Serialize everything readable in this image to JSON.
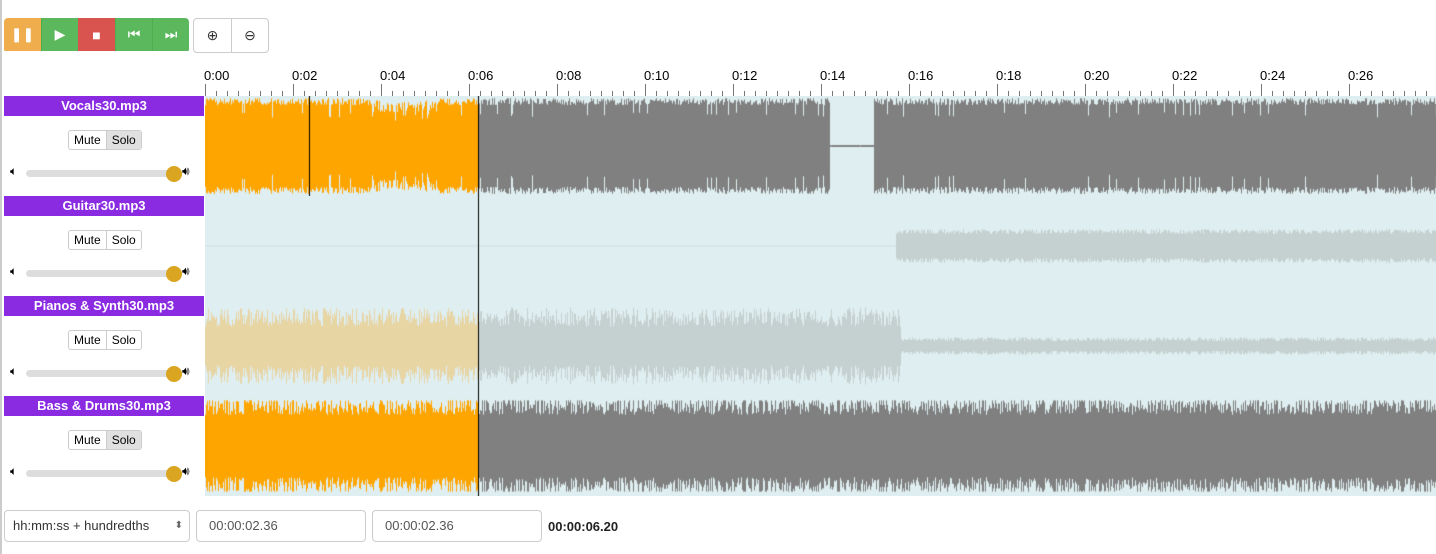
{
  "toolbar": {
    "buttons": [
      {
        "name": "pause",
        "icon": "pause-icon",
        "glyph": "❚❚",
        "color": "#f0ad4e"
      },
      {
        "name": "play",
        "icon": "play-icon",
        "glyph": "▶",
        "color": "#5cb85c"
      },
      {
        "name": "stop",
        "icon": "stop-icon",
        "glyph": "■",
        "color": "#d9534f"
      },
      {
        "name": "rewind",
        "icon": "skip-back-icon",
        "glyph": "⏮",
        "color": "#5cb85c"
      },
      {
        "name": "fast-forward",
        "icon": "skip-forward-icon",
        "glyph": "⏭",
        "color": "#5cb85c"
      }
    ],
    "zoom_in_glyph": "⊕",
    "zoom_out_glyph": "⊖"
  },
  "ruler": {
    "labels": [
      "0:00",
      "0:02",
      "0:04",
      "0:06",
      "0:08",
      "0:10",
      "0:12",
      "0:14",
      "0:16",
      "0:18",
      "0:20",
      "0:22",
      "0:24",
      "0:26"
    ]
  },
  "tracks": [
    {
      "name": "Vocals30.mp3",
      "mute": "Mute",
      "solo": "Solo",
      "solo_active": true,
      "volume": 1.0
    },
    {
      "name": "Guitar30.mp3",
      "mute": "Mute",
      "solo": "Solo",
      "solo_active": false,
      "volume": 1.0
    },
    {
      "name": "Pianos & Synth30.mp3",
      "mute": "Mute",
      "solo": "Solo",
      "solo_active": false,
      "volume": 1.0
    },
    {
      "name": "Bass & Drums30.mp3",
      "mute": "Mute",
      "solo": "Solo",
      "solo_active": true,
      "volume": 1.0
    }
  ],
  "colors": {
    "track_header": "#8a2be2",
    "played": "#ffa500",
    "unplayed": "#808080",
    "muted_played": "#e8d5a4",
    "muted_unplayed": "#c5d0d0",
    "background": "#dfeef0"
  },
  "playback": {
    "cursor_seconds": 6.2,
    "selection_start_seconds": 2.36
  },
  "bottom": {
    "time_format": "hh:mm:ss + hundredths",
    "selection_start": "00:00:02.36",
    "selection_end": "00:00:02.36",
    "position": "00:00:06.20"
  }
}
